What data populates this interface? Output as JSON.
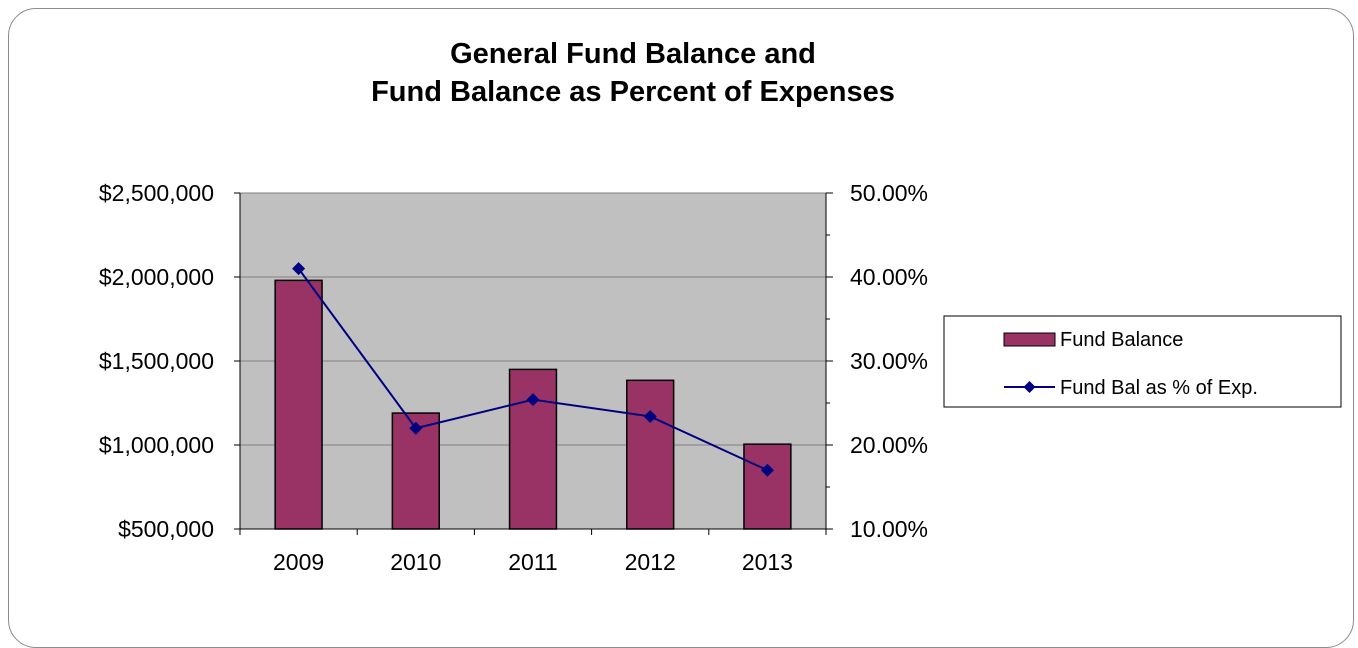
{
  "chart_data": {
    "type": "bar",
    "title_lines": [
      "General Fund Balance and",
      "Fund Balance as Percent of Expenses"
    ],
    "categories": [
      "2009",
      "2010",
      "2011",
      "2012",
      "2013"
    ],
    "y_left": {
      "min": 500000,
      "max": 2500000,
      "ticks": [
        500000,
        1000000,
        1500000,
        2000000,
        2500000
      ],
      "tick_labels": [
        "$500,000",
        "$1,000,000",
        "$1,500,000",
        "$2,000,000",
        "$2,500,000"
      ]
    },
    "y_right": {
      "min": 0.1,
      "max": 0.5,
      "ticks": [
        0.1,
        0.2,
        0.3,
        0.4,
        0.5
      ],
      "tick_labels": [
        "10.00%",
        "20.00%",
        "30.00%",
        "40.00%",
        "50.00%"
      ]
    },
    "series": [
      {
        "name": "Fund Balance",
        "kind": "bar",
        "axis": "left",
        "color": "#993366",
        "values": [
          1980000,
          1190000,
          1450000,
          1385000,
          1005000
        ]
      },
      {
        "name": "Fund Bal as % of Exp.",
        "kind": "line",
        "axis": "right",
        "color": "#000080",
        "values": [
          0.41,
          0.22,
          0.254,
          0.234,
          0.17
        ]
      }
    ],
    "plot_background": "#c0c0c0",
    "gridlines": true,
    "legend_position": "right"
  }
}
